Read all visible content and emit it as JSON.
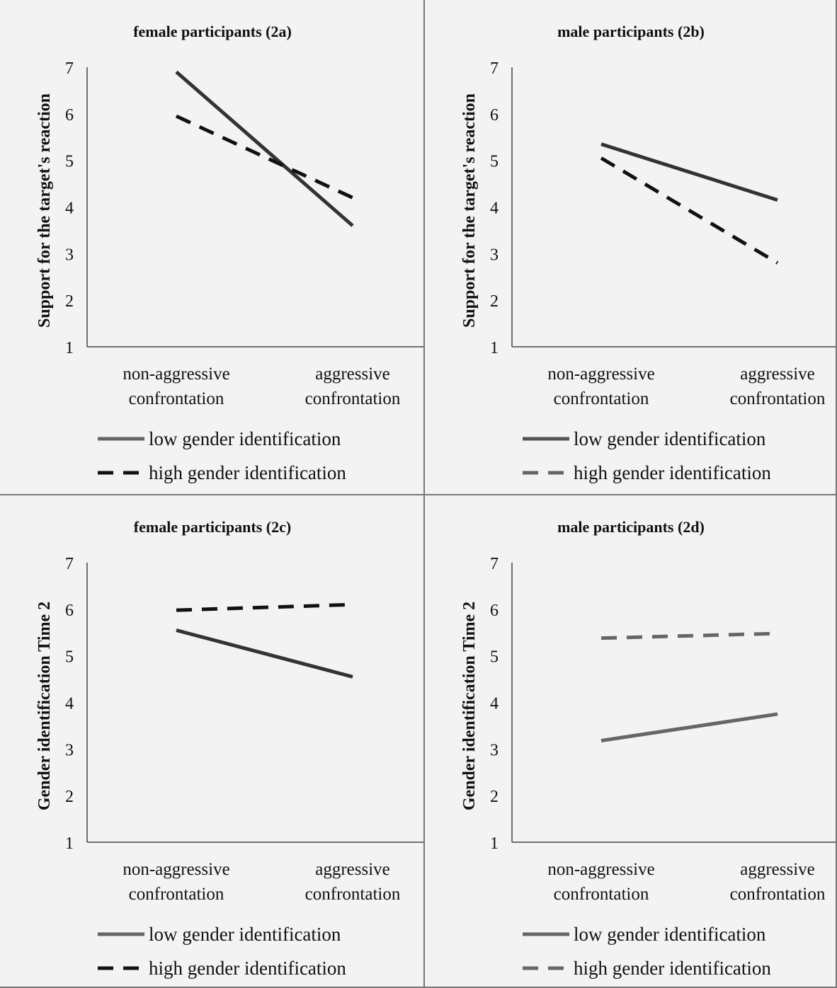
{
  "chart_data": [
    {
      "type": "line",
      "title": "female participants (2a)",
      "ylabel": "Support for the target's reaction",
      "xlabel": "",
      "categories": [
        "non-aggressive confrontation",
        "aggressive confrontation"
      ],
      "category_lines": [
        [
          "non-aggressive",
          "confrontation"
        ],
        [
          "aggressive",
          "confrontation"
        ]
      ],
      "ylim": [
        1,
        7
      ],
      "yticks": [
        "1",
        "2",
        "3",
        "4",
        "5",
        "6",
        "7"
      ],
      "legend_position": "bottom",
      "series": [
        {
          "name": "low gender identification",
          "values": [
            6.9,
            3.6
          ],
          "style": "solid",
          "color": "#333333",
          "legend_color": "#666666"
        },
        {
          "name": "high gender identification",
          "values": [
            5.95,
            4.2
          ],
          "style": "dashed",
          "color": "#111111",
          "legend_color": "#111111"
        }
      ]
    },
    {
      "type": "line",
      "title": "male participants (2b)",
      "ylabel": "Support for the target's reaction",
      "xlabel": "",
      "categories": [
        "non-aggressive confrontation",
        "aggressive confrontation"
      ],
      "category_lines": [
        [
          "non-aggressive",
          "confrontation"
        ],
        [
          "aggressive",
          "confrontation"
        ]
      ],
      "ylim": [
        1,
        7
      ],
      "yticks": [
        "1",
        "2",
        "3",
        "4",
        "5",
        "6",
        "7"
      ],
      "legend_position": "bottom",
      "series": [
        {
          "name": "low gender identification",
          "values": [
            5.35,
            4.15
          ],
          "style": "solid",
          "color": "#333333",
          "legend_color": "#555555"
        },
        {
          "name": "high gender identification",
          "values": [
            5.05,
            2.8
          ],
          "style": "dashed",
          "color": "#111111",
          "legend_color": "#666666"
        }
      ]
    },
    {
      "type": "line",
      "title": "female participants (2c)",
      "ylabel": "Gender identification Time 2",
      "xlabel": "",
      "categories": [
        "non-aggressive confrontation",
        "aggressive confrontation"
      ],
      "category_lines": [
        [
          "non-aggressive",
          "confrontation"
        ],
        [
          "aggressive",
          "confrontation"
        ]
      ],
      "ylim": [
        1,
        7
      ],
      "yticks": [
        "1",
        "2",
        "3",
        "4",
        "5",
        "6",
        "7"
      ],
      "legend_position": "bottom",
      "series": [
        {
          "name": "low gender identification",
          "values": [
            5.55,
            4.55
          ],
          "style": "solid",
          "color": "#333333",
          "legend_color": "#666666"
        },
        {
          "name": "high gender identification",
          "values": [
            5.98,
            6.1
          ],
          "style": "dashed",
          "color": "#111111",
          "legend_color": "#111111"
        }
      ]
    },
    {
      "type": "line",
      "title": "male participants (2d)",
      "ylabel": "Gender identification Time 2",
      "xlabel": "",
      "categories": [
        "non-aggressive confrontation",
        "aggressive confrontation"
      ],
      "category_lines": [
        [
          "non-aggressive",
          "confrontation"
        ],
        [
          "aggressive",
          "confrontation"
        ]
      ],
      "ylim": [
        1,
        7
      ],
      "yticks": [
        "1",
        "2",
        "3",
        "4",
        "5",
        "6",
        "7"
      ],
      "legend_position": "bottom",
      "series": [
        {
          "name": "low gender identification",
          "values": [
            3.18,
            3.75
          ],
          "style": "solid",
          "color": "#666666",
          "legend_color": "#666666"
        },
        {
          "name": "high gender identification",
          "values": [
            5.38,
            5.48
          ],
          "style": "dashed",
          "color": "#666666",
          "legend_color": "#666666"
        }
      ]
    }
  ]
}
